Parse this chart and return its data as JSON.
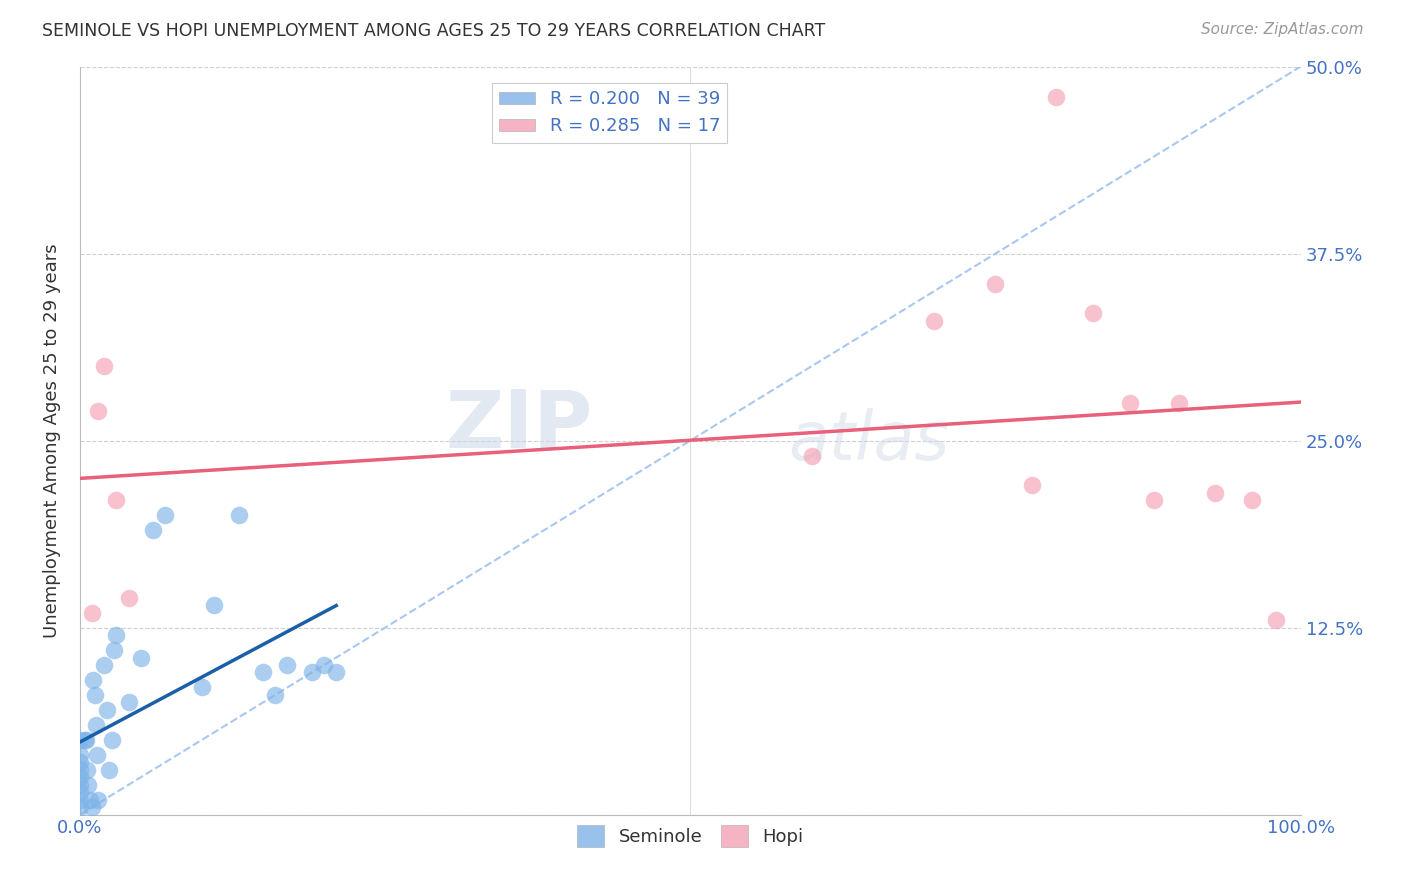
{
  "title": "SEMINOLE VS HOPI UNEMPLOYMENT AMONG AGES 25 TO 29 YEARS CORRELATION CHART",
  "source": "Source: ZipAtlas.com",
  "ylabel": "Unemployment Among Ages 25 to 29 years",
  "xlim": [
    0,
    1.0
  ],
  "ylim": [
    0,
    0.5
  ],
  "xtick_vals": [
    0.0,
    0.1,
    0.2,
    0.3,
    0.4,
    0.5,
    0.6,
    0.7,
    0.8,
    0.9,
    1.0
  ],
  "xticklabels": [
    "0.0%",
    "",
    "",
    "",
    "",
    "",
    "",
    "",
    "",
    "",
    "100.0%"
  ],
  "ytick_vals": [
    0.0,
    0.125,
    0.25,
    0.375,
    0.5
  ],
  "ytick_labels_right": [
    "",
    "12.5%",
    "25.0%",
    "37.5%",
    "50.0%"
  ],
  "ytick_labels_left": [
    "",
    "",
    "",
    "",
    ""
  ],
  "seminole_color": "#7eb3e8",
  "hopi_color": "#f4a0b5",
  "seminole_line_color": "#1a5fa8",
  "hopi_line_color": "#e8607a",
  "dashed_line_color": "#a8c8f0",
  "r_seminole": 0.2,
  "r_hopi": 0.285,
  "n_seminole": 39,
  "n_hopi": 17,
  "seminole_x": [
    0.0,
    0.0,
    0.0,
    0.0,
    0.0,
    0.0,
    0.0,
    0.0,
    0.0,
    0.004,
    0.005,
    0.006,
    0.007,
    0.008,
    0.01,
    0.011,
    0.012,
    0.013,
    0.014,
    0.015,
    0.02,
    0.022,
    0.024,
    0.026,
    0.028,
    0.03,
    0.04,
    0.05,
    0.06,
    0.07,
    0.1,
    0.11,
    0.13,
    0.15,
    0.16,
    0.17,
    0.19,
    0.2,
    0.21
  ],
  "seminole_y": [
    0.005,
    0.01,
    0.015,
    0.02,
    0.025,
    0.03,
    0.035,
    0.04,
    0.05,
    0.05,
    0.05,
    0.03,
    0.02,
    0.01,
    0.005,
    0.09,
    0.08,
    0.06,
    0.04,
    0.01,
    0.1,
    0.07,
    0.03,
    0.05,
    0.11,
    0.12,
    0.075,
    0.105,
    0.19,
    0.2,
    0.085,
    0.14,
    0.2,
    0.095,
    0.08,
    0.1,
    0.095,
    0.1,
    0.095
  ],
  "hopi_x": [
    0.01,
    0.015,
    0.02,
    0.03,
    0.04,
    0.6,
    0.7,
    0.75,
    0.78,
    0.8,
    0.83,
    0.86,
    0.88,
    0.9,
    0.93,
    0.96,
    0.98
  ],
  "hopi_y": [
    0.135,
    0.27,
    0.3,
    0.21,
    0.145,
    0.24,
    0.33,
    0.355,
    0.22,
    0.48,
    0.335,
    0.275,
    0.21,
    0.275,
    0.215,
    0.21,
    0.13
  ],
  "watermark_zip": "ZIP",
  "watermark_atlas": "atlas",
  "background_color": "#ffffff",
  "grid_color": "#d0d0d0"
}
